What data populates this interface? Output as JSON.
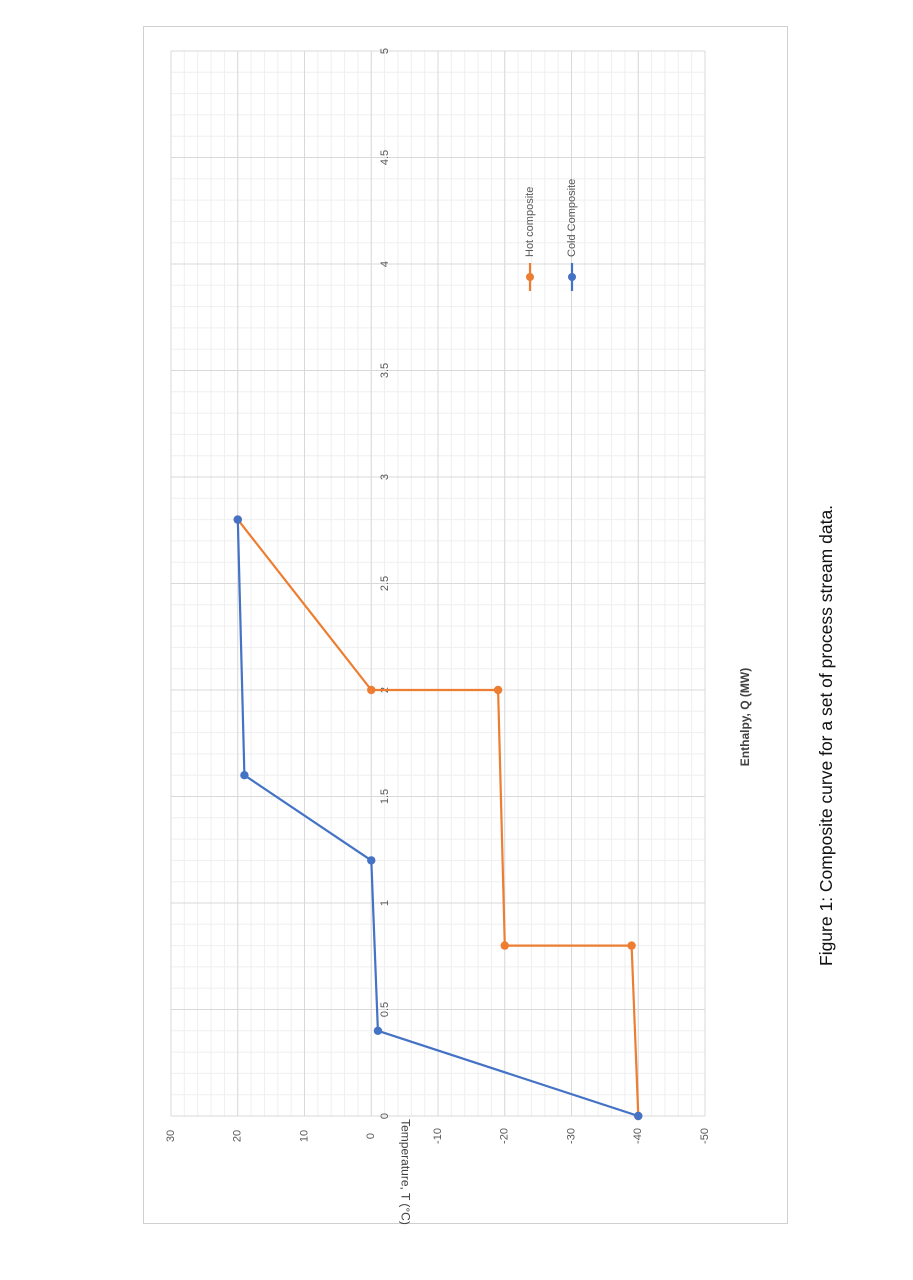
{
  "figure": {
    "caption": "Figure 1: Composite curve for a set of process stream data."
  },
  "chart_data": {
    "type": "line",
    "orientation": "rotated-90-ccw",
    "title": "",
    "xlabel": "Enthalpy, Q (MW)",
    "ylabel": "Temperature, T (°C)",
    "xlim": [
      0,
      5
    ],
    "ylim": [
      -50,
      30
    ],
    "x_ticks": [
      0,
      0.5,
      1,
      1.5,
      2,
      2.5,
      3,
      3.5,
      4,
      4.5,
      5
    ],
    "x_tick_labels": [
      "0",
      "0.5",
      "1",
      "1.5",
      "2",
      "2.5",
      "3",
      "3.5",
      "4",
      "4.5",
      "5"
    ],
    "y_ticks": [
      -50,
      -40,
      -30,
      -20,
      -10,
      0,
      10,
      20,
      30
    ],
    "y_tick_labels": [
      "-50",
      "-40",
      "-30",
      "-20",
      "-10",
      "0",
      "10",
      "20",
      "30"
    ],
    "grid": true,
    "legend_position": "right",
    "series": [
      {
        "name": "Hot composite",
        "color": "#ED7D31",
        "points": [
          [
            0,
            -40
          ],
          [
            0.8,
            -39
          ],
          [
            0.8,
            -20
          ],
          [
            2,
            -19
          ],
          [
            2,
            0
          ],
          [
            2.8,
            20
          ]
        ]
      },
      {
        "name": "Cold Composite",
        "color": "#4472C4",
        "points": [
          [
            0,
            -40
          ],
          [
            0.4,
            -1
          ],
          [
            1.2,
            0
          ],
          [
            1.6,
            19
          ],
          [
            2.8,
            20
          ]
        ]
      }
    ]
  }
}
